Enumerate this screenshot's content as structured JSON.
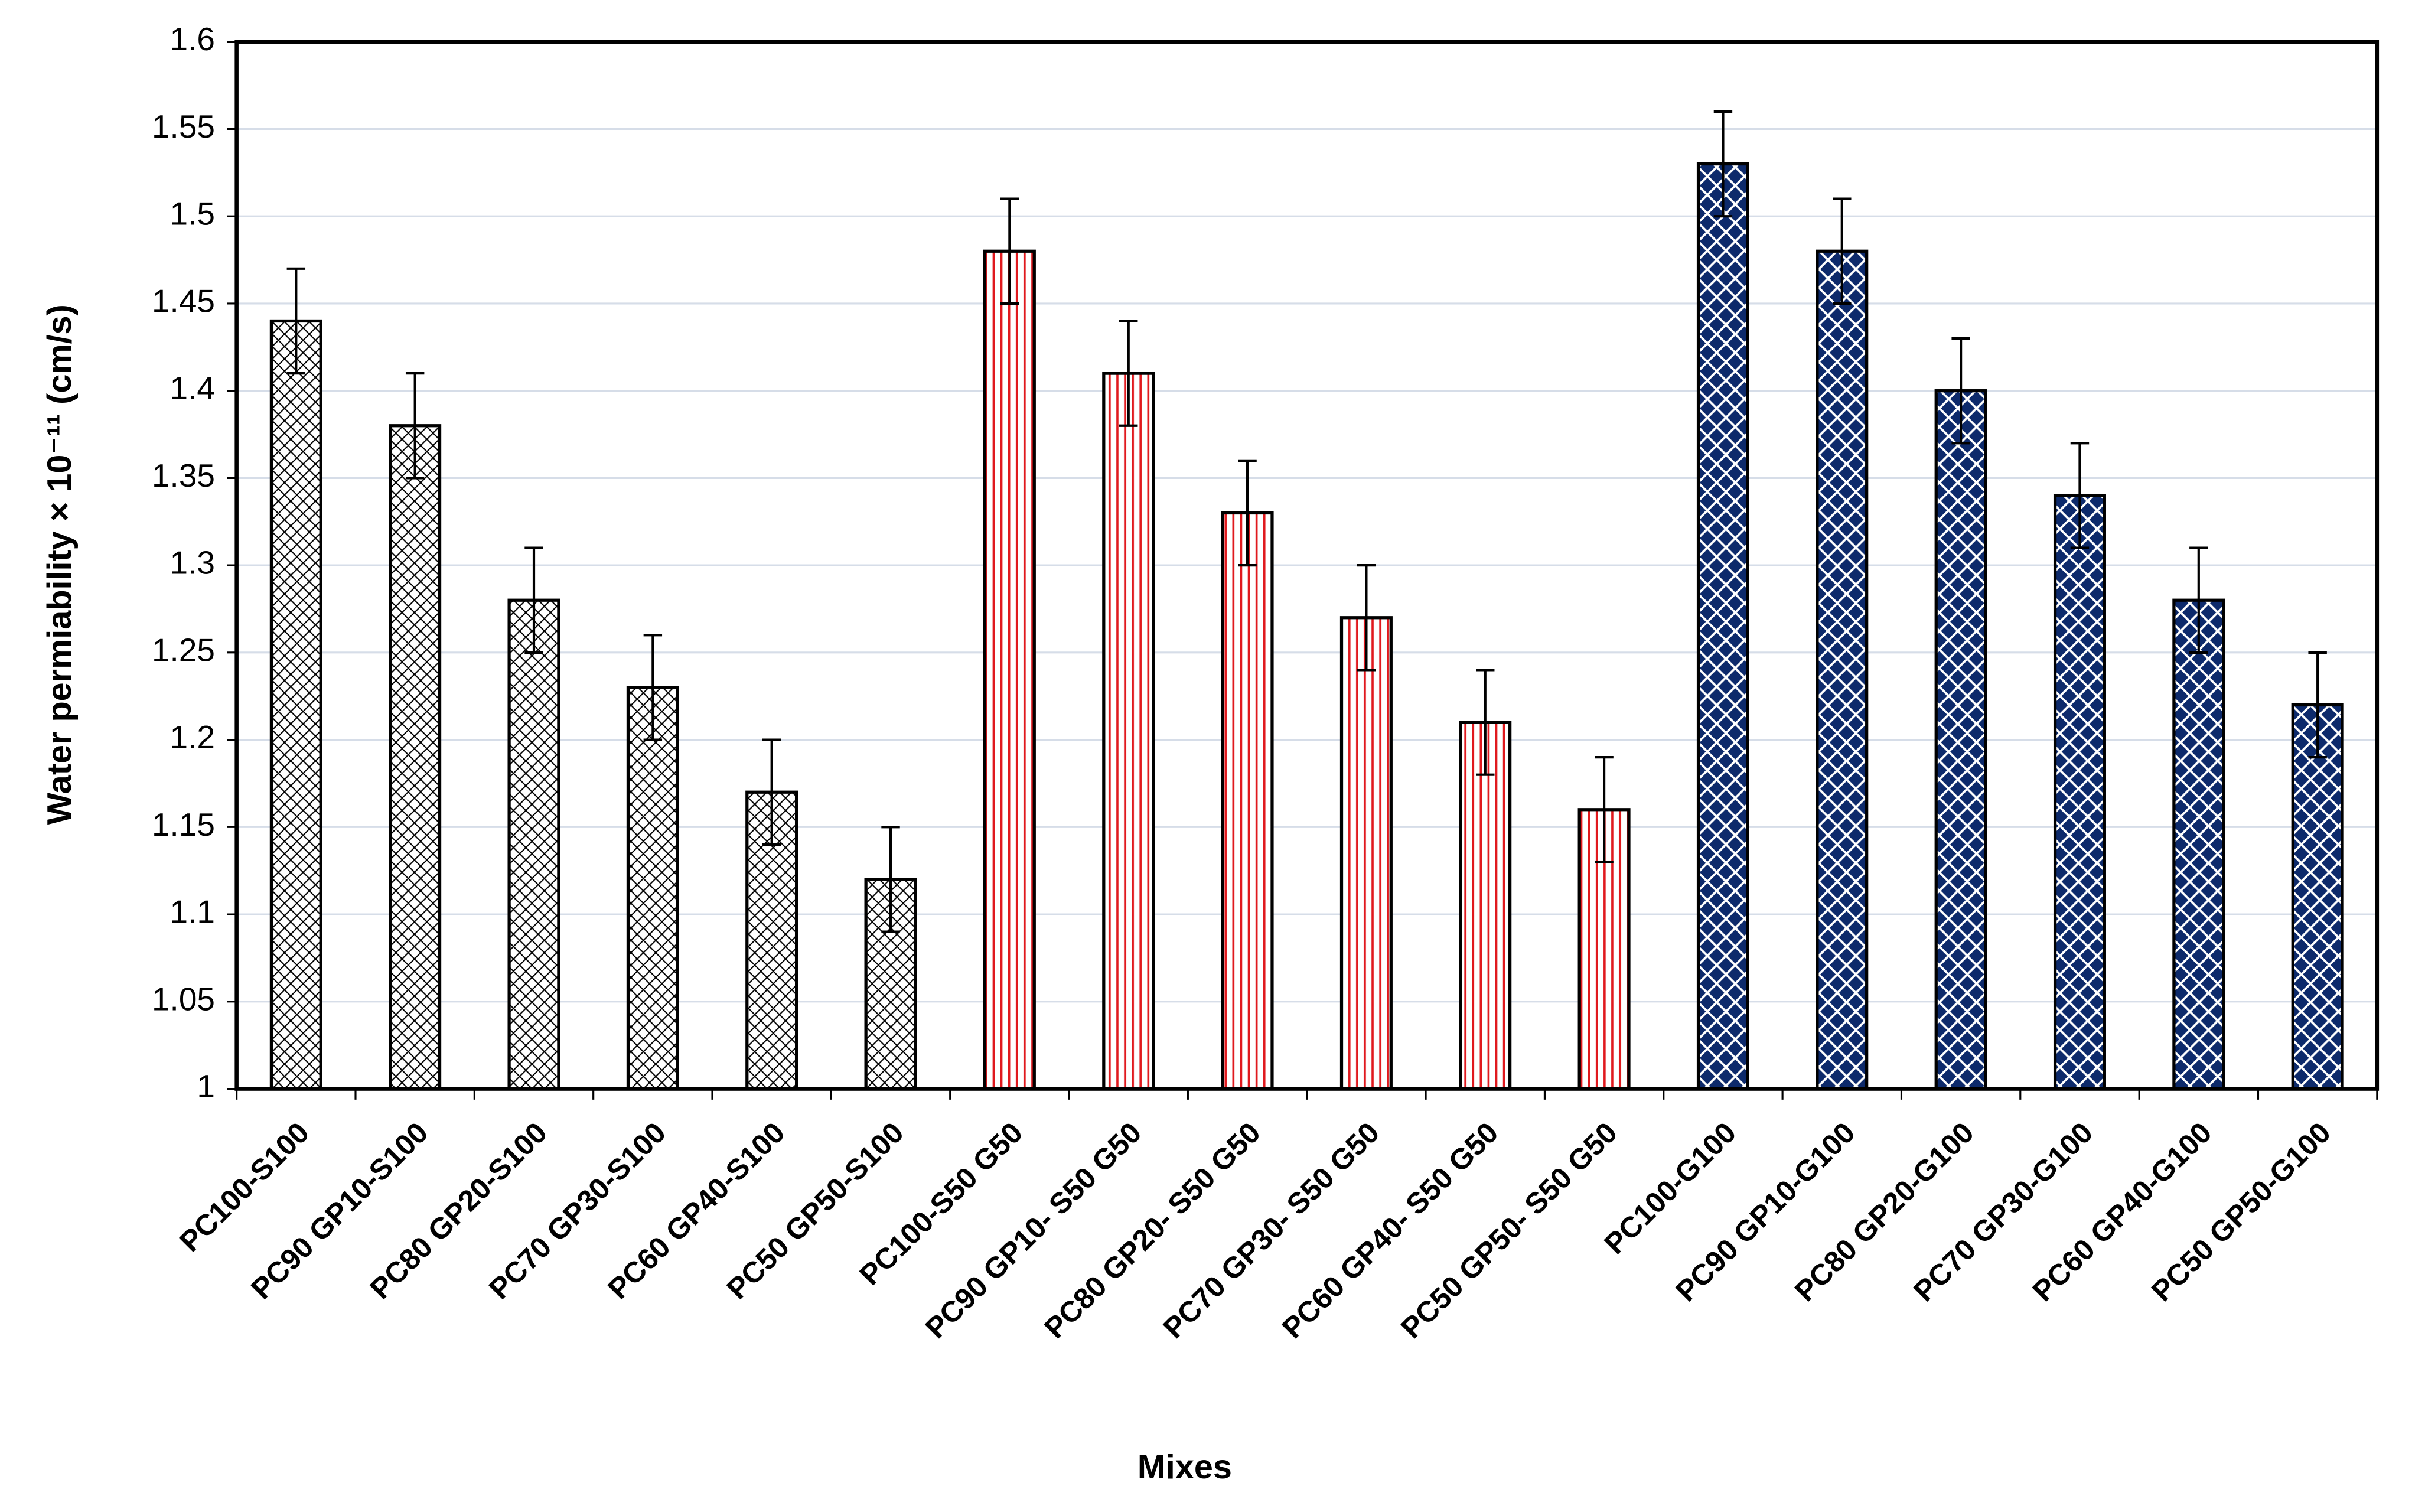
{
  "chart_data": {
    "type": "bar",
    "y_label": "Water permiability × 10⁻¹¹ (cm/s)",
    "x_label": "Mixes",
    "categories": [
      "PC100-S100",
      "PC90 GP10-S100",
      "PC80 GP20-S100",
      "PC70 GP30-S100",
      "PC60 GP40-S100",
      "PC50 GP50-S100",
      "PC100-S50 G50",
      "PC90 GP10- S50 G50",
      "PC80 GP20- S50 G50",
      "PC70 GP30- S50 G50",
      "PC60 GP40- S50 G50",
      "PC50 GP50- S50 G50",
      "PC100-G100",
      "PC90 GP10-G100",
      "PC80 GP20-G100",
      "PC70 GP30-G100",
      "PC60 GP40-G100",
      "PC50 GP50-G100"
    ],
    "values": [
      1.44,
      1.38,
      1.28,
      1.23,
      1.17,
      1.12,
      1.48,
      1.41,
      1.33,
      1.27,
      1.21,
      1.16,
      1.53,
      1.48,
      1.4,
      1.34,
      1.28,
      1.22
    ],
    "errors": [
      0.03,
      0.03,
      0.03,
      0.03,
      0.03,
      0.03,
      0.03,
      0.03,
      0.03,
      0.03,
      0.03,
      0.03,
      0.03,
      0.03,
      0.03,
      0.03,
      0.03,
      0.03
    ],
    "patterns": [
      "crosshatch",
      "crosshatch",
      "crosshatch",
      "crosshatch",
      "crosshatch",
      "crosshatch",
      "stripes",
      "stripes",
      "stripes",
      "stripes",
      "stripes",
      "stripes",
      "diamonds",
      "diamonds",
      "diamonds",
      "diamonds",
      "diamonds",
      "diamonds"
    ],
    "colors": [
      "#000000",
      "#000000",
      "#000000",
      "#000000",
      "#000000",
      "#000000",
      "#e0191e",
      "#e0191e",
      "#e0191e",
      "#e0191e",
      "#e0191e",
      "#e0191e",
      "#0d2a6b",
      "#0d2a6b",
      "#0d2a6b",
      "#0d2a6b",
      "#0d2a6b",
      "#0d2a6b"
    ],
    "ylim": [
      1,
      1.6
    ],
    "yticks": [
      1,
      1.05,
      1.1,
      1.15,
      1.2,
      1.25,
      1.3,
      1.35,
      1.4,
      1.45,
      1.5,
      1.55,
      1.6
    ],
    "grid": true
  }
}
